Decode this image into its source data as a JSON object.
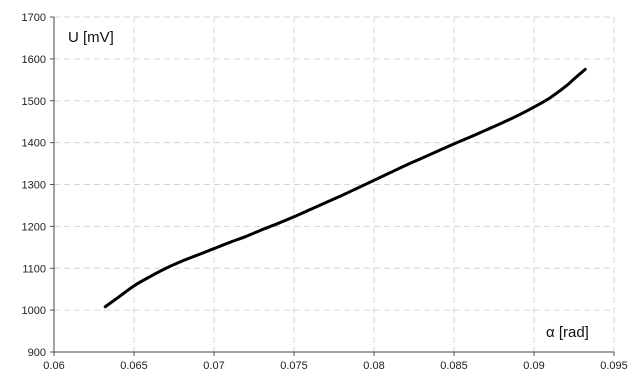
{
  "chart_data": {
    "type": "line",
    "title": "",
    "xlabel": "α [rad]",
    "ylabel": "U [mV]",
    "xlim": [
      0.06,
      0.095
    ],
    "ylim": [
      900,
      1700
    ],
    "x_ticks": [
      "0.06",
      "0.065",
      "0.07",
      "0.075",
      "0.08",
      "0.085",
      "0.09",
      "0.095"
    ],
    "y_ticks": [
      "900",
      "1000",
      "1100",
      "1200",
      "1300",
      "1400",
      "1500",
      "1600",
      "1700"
    ],
    "grid": true,
    "legend": "none",
    "series": [
      {
        "color": "#000000",
        "x": [
          0.0632,
          0.064,
          0.065,
          0.066,
          0.067,
          0.068,
          0.069,
          0.07,
          0.071,
          0.072,
          0.073,
          0.074,
          0.075,
          0.076,
          0.077,
          0.078,
          0.079,
          0.08,
          0.081,
          0.082,
          0.083,
          0.084,
          0.085,
          0.086,
          0.087,
          0.088,
          0.089,
          0.09,
          0.091,
          0.092,
          0.0925,
          0.0932
        ],
        "values": [
          1008,
          1030,
          1058,
          1080,
          1100,
          1117,
          1132,
          1147,
          1162,
          1176,
          1192,
          1207,
          1223,
          1240,
          1257,
          1274,
          1292,
          1310,
          1328,
          1346,
          1363,
          1380,
          1397,
          1413,
          1430,
          1447,
          1465,
          1485,
          1507,
          1535,
          1552,
          1575
        ]
      }
    ]
  }
}
